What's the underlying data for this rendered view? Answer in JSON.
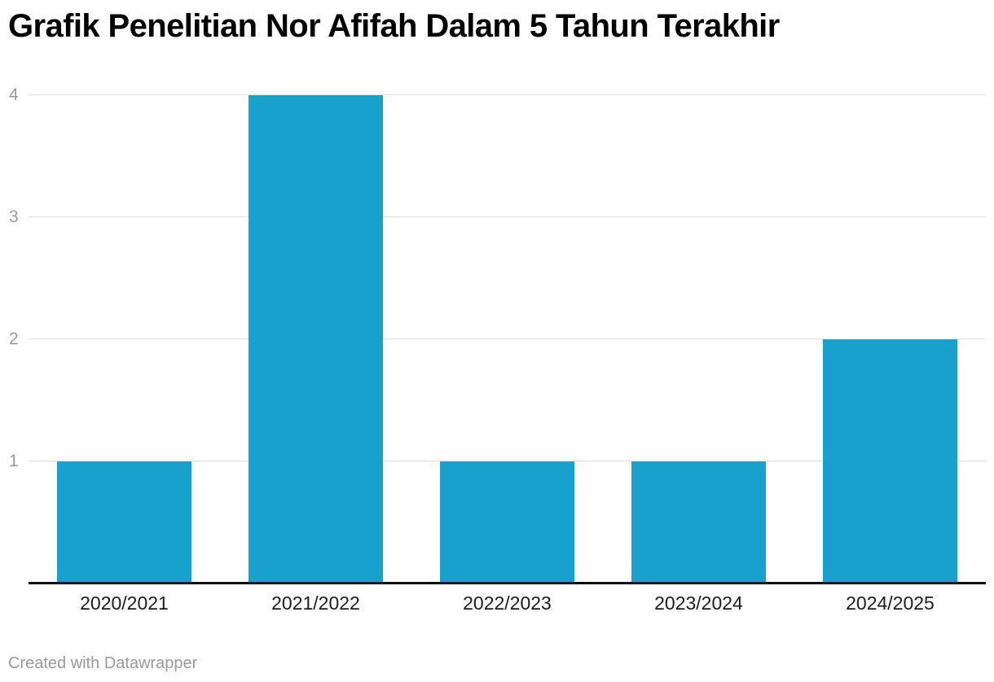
{
  "chart_data": {
    "type": "bar",
    "title": "Grafik Penelitian Nor Afifah Dalam 5 Tahun Terakhir",
    "categories": [
      "2020/2021",
      "2021/2022",
      "2022/2023",
      "2023/2024",
      "2024/2025"
    ],
    "values": [
      1,
      4,
      1,
      1,
      2
    ],
    "xlabel": "",
    "ylabel": "",
    "ylim": [
      0,
      4
    ],
    "yticks": [
      1,
      2,
      3,
      4
    ],
    "grid": true,
    "legend": false,
    "bar_color": "#18a1cd",
    "colors": {
      "gridline": "#e0e0e0",
      "axis_line": "#101010",
      "ytick_label": "#9b9b9b",
      "xtick_label": "#1d1d1d",
      "title": "#000000",
      "footer": "#9a9a9a",
      "background": "#ffffff"
    }
  },
  "footer": {
    "credit": "Created with Datawrapper"
  }
}
